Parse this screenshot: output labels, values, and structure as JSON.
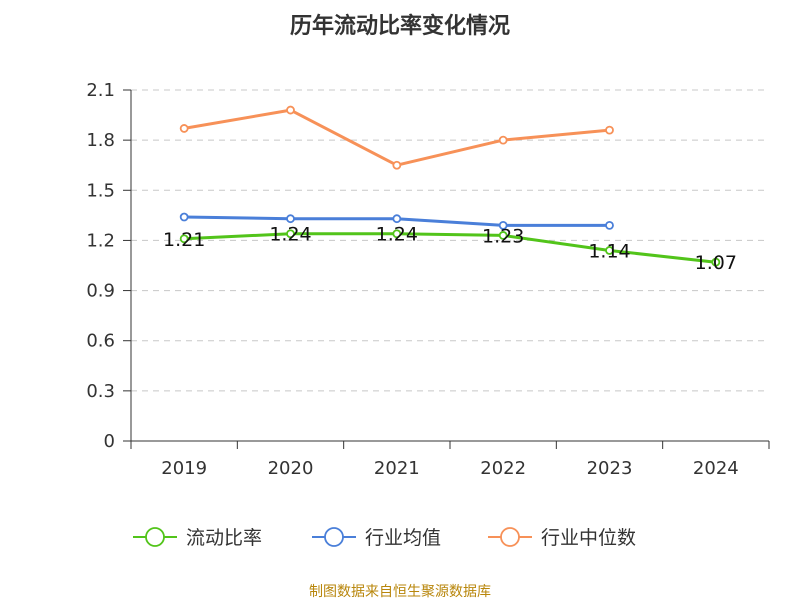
{
  "chart_data": {
    "type": "line",
    "title": "历年流动比率变化情况",
    "categories": [
      "2019",
      "2020",
      "2021",
      "2022",
      "2023",
      "2024"
    ],
    "ylim": [
      0,
      2.1
    ],
    "yticks": [
      "0",
      "0.3",
      "0.6",
      "0.9",
      "1.2",
      "1.5",
      "1.8",
      "2.1"
    ],
    "grid": true,
    "legend_position": "bottom",
    "series": [
      {
        "name": "流动比率",
        "color": "#52c41a",
        "values": [
          1.21,
          1.24,
          1.24,
          1.23,
          1.14,
          1.07
        ],
        "labels": [
          "1.21",
          "1.24",
          "1.24",
          "1.23",
          "1.14",
          "1.07"
        ]
      },
      {
        "name": "行业均值",
        "color": "#4a7fd9",
        "values": [
          1.34,
          1.33,
          1.33,
          1.29,
          1.29,
          null
        ]
      },
      {
        "name": "行业中位数",
        "color": "#f79158",
        "values": [
          1.87,
          1.98,
          1.65,
          1.8,
          1.86,
          null
        ]
      }
    ]
  },
  "source_note": "制图数据来自恒生聚源数据库"
}
